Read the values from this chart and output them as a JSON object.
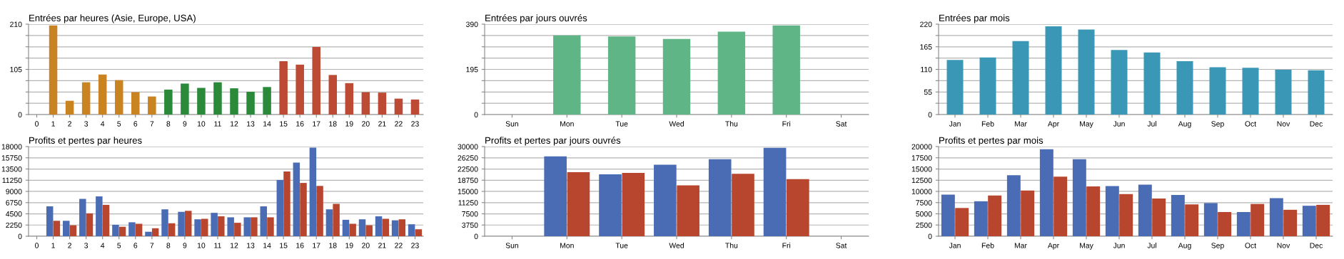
{
  "chart_data": [
    {
      "type": "bar",
      "title": "Entrées par heures (Asie, Europe, USA)",
      "categories": [
        "0",
        "1",
        "2",
        "3",
        "4",
        "5",
        "6",
        "7",
        "8",
        "9",
        "10",
        "11",
        "12",
        "13",
        "14",
        "15",
        "16",
        "17",
        "18",
        "19",
        "20",
        "21",
        "22",
        "23"
      ],
      "values": [
        null,
        207,
        32,
        75,
        93,
        80,
        52,
        42,
        58,
        72,
        62,
        75,
        61,
        53,
        64,
        124,
        116,
        157,
        92,
        73,
        52,
        51,
        37,
        35
      ],
      "colors": [
        "#c98321",
        "#c98321",
        "#c98321",
        "#c98321",
        "#c98321",
        "#c98321",
        "#c98321",
        "#c98321",
        "#2a8a3a",
        "#2a8a3a",
        "#2a8a3a",
        "#2a8a3a",
        "#2a8a3a",
        "#2a8a3a",
        "#2a8a3a",
        "#bd4a35",
        "#bd4a35",
        "#bd4a35",
        "#bd4a35",
        "#bd4a35",
        "#bd4a35",
        "#bd4a35",
        "#bd4a35",
        "#bd4a35"
      ],
      "ylim": [
        0,
        210
      ],
      "yticks": [
        0,
        {
          "value": 26.25,
          "label": null
        },
        {
          "value": 52.5,
          "label": null
        },
        {
          "value": 78.75,
          "label": null
        },
        105,
        {
          "value": 131.25,
          "label": null
        },
        {
          "value": 157.5,
          "label": null
        },
        {
          "value": 183.75,
          "label": null
        },
        210
      ],
      "grid": "y"
    },
    {
      "type": "bar",
      "title": "Entrées par jours ouvrés",
      "categories": [
        "Sun",
        "Mon",
        "Tue",
        "Wed",
        "Thu",
        "Fri",
        "Sat"
      ],
      "values": [
        null,
        342,
        337,
        326,
        358,
        385,
        null
      ],
      "color": "#5fb585",
      "ylim": [
        0,
        390
      ],
      "yticks": [
        0,
        {
          "value": 48.75,
          "label": null
        },
        {
          "value": 97.5,
          "label": null
        },
        {
          "value": 146.25,
          "label": null
        },
        195,
        {
          "value": 243.75,
          "label": null
        },
        {
          "value": 292.5,
          "label": null
        },
        {
          "value": 341.25,
          "label": null
        },
        390
      ],
      "grid": "y"
    },
    {
      "type": "bar",
      "title": "Entrées par mois",
      "categories": [
        "Jan",
        "Feb",
        "Mar",
        "Apr",
        "May",
        "Jun",
        "Jul",
        "Aug",
        "Sep",
        "Oct",
        "Nov",
        "Dec"
      ],
      "values": [
        133,
        139,
        179,
        215,
        207,
        157,
        151,
        130,
        115,
        114,
        109,
        108
      ],
      "color": "#3a97b5",
      "ylim": [
        0,
        220
      ],
      "yticks": [
        0,
        {
          "value": 27.5,
          "label": null
        },
        55,
        {
          "value": 82.5,
          "label": null
        },
        110,
        {
          "value": 137.5,
          "label": null
        },
        165,
        {
          "value": 192.5,
          "label": null
        },
        220
      ],
      "grid": "y"
    },
    {
      "type": "bar",
      "title": "Profits et pertes par heures",
      "categories": [
        "0",
        "1",
        "2",
        "3",
        "4",
        "5",
        "6",
        "7",
        "8",
        "9",
        "10",
        "11",
        "12",
        "13",
        "14",
        "15",
        "16",
        "17",
        "18",
        "19",
        "20",
        "21",
        "22",
        "23"
      ],
      "series": [
        {
          "color": "#4a6cb5",
          "values": [
            null,
            6000,
            3100,
            7500,
            8000,
            2300,
            2800,
            900,
            5400,
            4900,
            3400,
            4700,
            3800,
            3800,
            6000,
            11300,
            14800,
            17800,
            5400,
            3300,
            3400,
            4000,
            3200,
            2400
          ]
        },
        {
          "color": "#b8462e",
          "values": [
            null,
            3100,
            2200,
            4600,
            6300,
            1900,
            2500,
            1600,
            2600,
            5100,
            3500,
            4000,
            2700,
            3800,
            3800,
            13000,
            10700,
            10100,
            6500,
            2500,
            2200,
            3500,
            3400,
            1400
          ]
        }
      ],
      "ylim": [
        0,
        18000
      ],
      "yticks": [
        0,
        2250,
        4500,
        6750,
        9000,
        11250,
        13500,
        15750,
        18000
      ],
      "grid": "y"
    },
    {
      "type": "bar",
      "title": "Profits et pertes par jours ouvrés",
      "categories": [
        "Sun",
        "Mon",
        "Tue",
        "Wed",
        "Thu",
        "Fri",
        "Sat"
      ],
      "series": [
        {
          "color": "#4a6cb5",
          "values": [
            null,
            26700,
            20700,
            23900,
            25800,
            29600,
            null
          ]
        },
        {
          "color": "#b8462e",
          "values": [
            null,
            21400,
            21200,
            17000,
            20900,
            19100,
            null
          ]
        }
      ],
      "ylim": [
        0,
        30000
      ],
      "yticks": [
        0,
        3750,
        7500,
        11250,
        15000,
        18750,
        22500,
        26250,
        30000
      ],
      "grid": "y"
    },
    {
      "type": "bar",
      "title": "Profits et pertes par mois",
      "categories": [
        "Jan",
        "Feb",
        "Mar",
        "Apr",
        "May",
        "Jun",
        "Jul",
        "Aug",
        "Sep",
        "Oct",
        "Nov",
        "Dec"
      ],
      "series": [
        {
          "color": "#4a6cb5",
          "values": [
            9300,
            7800,
            13600,
            19400,
            17200,
            11200,
            11500,
            9200,
            7400,
            5400,
            8500,
            6800
          ]
        },
        {
          "color": "#b8462e",
          "values": [
            6300,
            9100,
            10200,
            13300,
            11100,
            9400,
            8400,
            7100,
            5400,
            7200,
            5900,
            7000
          ]
        }
      ],
      "ylim": [
        0,
        20000
      ],
      "yticks": [
        0,
        2500,
        5000,
        7500,
        10000,
        12500,
        15000,
        17500,
        20000
      ],
      "grid": "y"
    }
  ]
}
